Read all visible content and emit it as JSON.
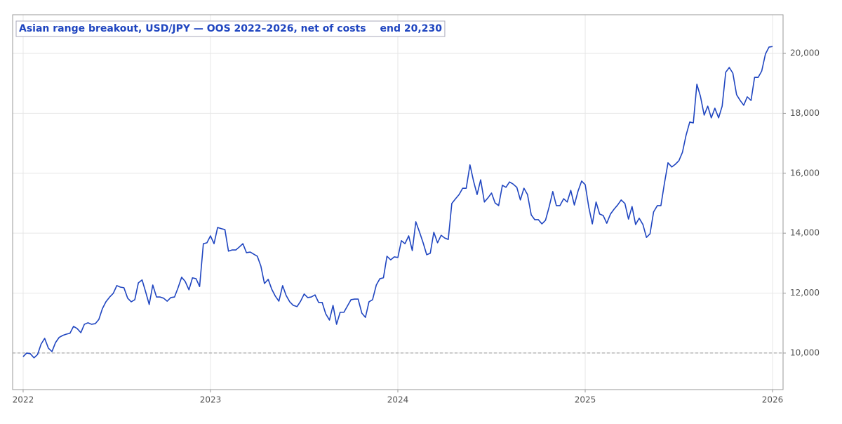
{
  "chart_data": {
    "type": "line",
    "title": "Asian range breakout, USD/JPY — OOS 2022–2026, net of costs",
    "annotation": "end 20,230",
    "color": "#1f45c0",
    "grid": true,
    "hline": 10000,
    "xlim": [
      2021.944,
      2026.056
    ],
    "ylim": [
      8780,
      21290
    ],
    "xticks": [
      2022,
      2023,
      2024,
      2025,
      2026
    ],
    "yticks": [
      {
        "value": 10000,
        "label": "10,000"
      },
      {
        "value": 12000,
        "label": "12,000"
      },
      {
        "value": 14000,
        "label": "14,000"
      },
      {
        "value": 16000,
        "label": "16,000"
      },
      {
        "value": 18000,
        "label": "18,000"
      },
      {
        "value": 20000,
        "label": "20,000"
      }
    ],
    "x": [
      2022,
      2022.019,
      2022.038,
      2022.058,
      2022.077,
      2022.096,
      2022.115,
      2022.135,
      2022.154,
      2022.173,
      2022.192,
      2022.212,
      2022.231,
      2022.25,
      2022.269,
      2022.288,
      2022.308,
      2022.327,
      2022.346,
      2022.365,
      2022.385,
      2022.404,
      2022.423,
      2022.442,
      2022.462,
      2022.481,
      2022.5,
      2022.519,
      2022.538,
      2022.558,
      2022.577,
      2022.596,
      2022.615,
      2022.635,
      2022.654,
      2022.673,
      2022.692,
      2022.712,
      2022.731,
      2022.75,
      2022.769,
      2022.788,
      2022.808,
      2022.827,
      2022.846,
      2022.865,
      2022.885,
      2022.904,
      2022.923,
      2022.942,
      2022.962,
      2022.981,
      2023,
      2023.019,
      2023.038,
      2023.058,
      2023.077,
      2023.096,
      2023.115,
      2023.135,
      2023.154,
      2023.173,
      2023.192,
      2023.212,
      2023.231,
      2023.25,
      2023.269,
      2023.288,
      2023.308,
      2023.327,
      2023.346,
      2023.365,
      2023.385,
      2023.404,
      2023.423,
      2023.442,
      2023.462,
      2023.481,
      2023.5,
      2023.519,
      2023.538,
      2023.558,
      2023.577,
      2023.596,
      2023.615,
      2023.635,
      2023.654,
      2023.673,
      2023.692,
      2023.712,
      2023.731,
      2023.75,
      2023.769,
      2023.788,
      2023.808,
      2023.827,
      2023.846,
      2023.865,
      2023.885,
      2023.904,
      2023.923,
      2023.942,
      2023.962,
      2023.981,
      2024,
      2024.019,
      2024.038,
      2024.058,
      2024.077,
      2024.096,
      2024.115,
      2024.135,
      2024.154,
      2024.173,
      2024.192,
      2024.212,
      2024.231,
      2024.25,
      2024.269,
      2024.288,
      2024.308,
      2024.327,
      2024.346,
      2024.365,
      2024.385,
      2024.404,
      2024.423,
      2024.442,
      2024.462,
      2024.481,
      2024.5,
      2024.519,
      2024.538,
      2024.558,
      2024.577,
      2024.596,
      2024.615,
      2024.635,
      2024.654,
      2024.673,
      2024.692,
      2024.712,
      2024.731,
      2024.75,
      2024.769,
      2024.788,
      2024.808,
      2024.827,
      2024.846,
      2024.865,
      2024.885,
      2024.904,
      2024.923,
      2024.942,
      2024.962,
      2024.981,
      2025,
      2025.019,
      2025.038,
      2025.058,
      2025.077,
      2025.096,
      2025.115,
      2025.135,
      2025.154,
      2025.173,
      2025.192,
      2025.212,
      2025.231,
      2025.25,
      2025.269,
      2025.288,
      2025.308,
      2025.327,
      2025.346,
      2025.365,
      2025.385,
      2025.404,
      2025.423,
      2025.442,
      2025.462,
      2025.481,
      2025.5,
      2025.519,
      2025.538,
      2025.558,
      2025.577,
      2025.596,
      2025.615,
      2025.635,
      2025.654,
      2025.673,
      2025.692,
      2025.712,
      2025.731,
      2025.75,
      2025.769,
      2025.788,
      2025.808,
      2025.827,
      2025.846,
      2025.865,
      2025.885,
      2025.904,
      2025.923,
      2025.942,
      2025.962,
      2025.981,
      2026
    ],
    "values": [
      9880,
      10000,
      9980,
      9840,
      9950,
      10300,
      10490,
      10160,
      10050,
      10350,
      10520,
      10590,
      10630,
      10660,
      10890,
      10820,
      10680,
      10960,
      11010,
      10960,
      10980,
      11120,
      11480,
      11710,
      11870,
      11990,
      12250,
      12200,
      12180,
      11830,
      11710,
      11780,
      12340,
      12440,
      12040,
      11620,
      12270,
      11870,
      11870,
      11830,
      11730,
      11850,
      11870,
      12180,
      12530,
      12390,
      12110,
      12510,
      12480,
      12220,
      13650,
      13680,
      13910,
      13650,
      14190,
      14150,
      14120,
      13400,
      13440,
      13440,
      13540,
      13650,
      13350,
      13370,
      13300,
      13230,
      12900,
      12320,
      12460,
      12130,
      11900,
      11730,
      12250,
      11920,
      11710,
      11590,
      11550,
      11730,
      11970,
      11850,
      11870,
      11940,
      11690,
      11690,
      11310,
      11100,
      11590,
      10960,
      11360,
      11360,
      11570,
      11780,
      11800,
      11800,
      11330,
      11190,
      11710,
      11780,
      12270,
      12480,
      12510,
      13230,
      13110,
      13210,
      13190,
      13750,
      13650,
      13910,
      13420,
      14380,
      14050,
      13680,
      13280,
      13330,
      14030,
      13680,
      13930,
      13840,
      13790,
      14990,
      15150,
      15290,
      15500,
      15500,
      16280,
      15740,
      15290,
      15780,
      15040,
      15180,
      15340,
      15010,
      14920,
      15600,
      15530,
      15710,
      15640,
      15530,
      15110,
      15500,
      15290,
      14610,
      14450,
      14450,
      14310,
      14430,
      14890,
      15390,
      14920,
      14920,
      15150,
      15040,
      15430,
      14940,
      15410,
      15740,
      15620,
      14870,
      14310,
      15040,
      14640,
      14590,
      14330,
      14640,
      14800,
      14940,
      15110,
      14990,
      14470,
      14890,
      14290,
      14500,
      14290,
      13860,
      13980,
      14710,
      14920,
      14920,
      15670,
      16350,
      16210,
      16300,
      16420,
      16700,
      17260,
      17710,
      17680,
      18970,
      18570,
      17940,
      18240,
      17850,
      18170,
      17850,
      18240,
      19370,
      19530,
      19340,
      18620,
      18430,
      18270,
      18550,
      18430,
      19200,
      19200,
      19410,
      19980,
      20210,
      20230
    ]
  }
}
